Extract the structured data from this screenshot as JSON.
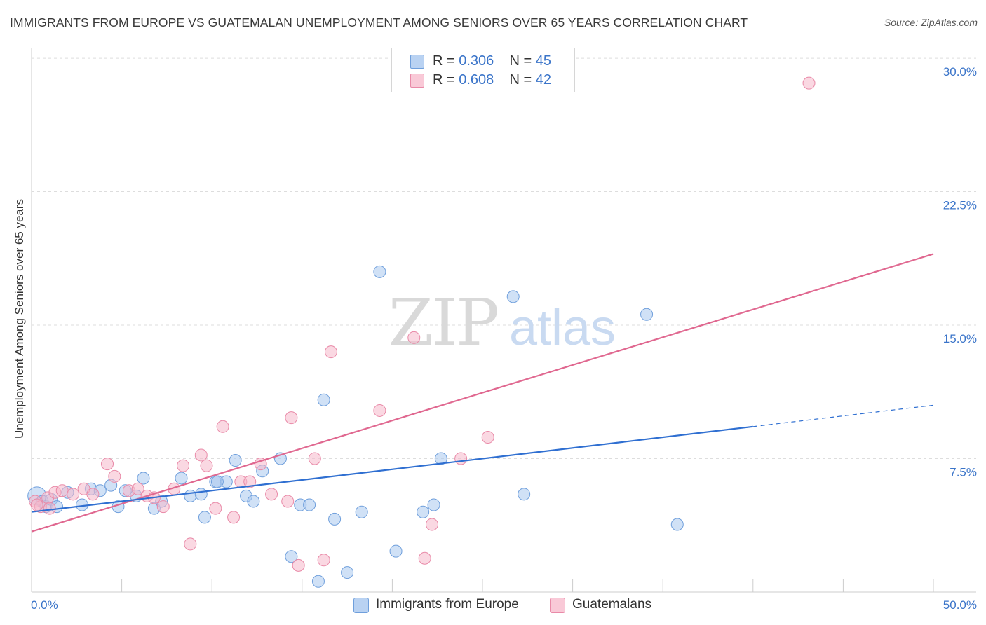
{
  "header": {
    "title": "IMMIGRANTS FROM EUROPE VS GUATEMALAN UNEMPLOYMENT AMONG SENIORS OVER 65 YEARS CORRELATION CHART",
    "source": "Source: ZipAtlas.com"
  },
  "watermark": {
    "zip": "ZIP",
    "atlas": "atlas"
  },
  "legend": {
    "rows": [
      {
        "r_label": "R = ",
        "r_value": "0.306",
        "n_label": "N = ",
        "n_value": "45"
      },
      {
        "r_label": "R = ",
        "r_value": "0.608",
        "n_label": "N = ",
        "n_value": "42"
      }
    ]
  },
  "bottom_legend": {
    "items": [
      {
        "label": "Immigrants from Europe"
      },
      {
        "label": "Guatemalans"
      }
    ]
  },
  "colors": {
    "blue_fill": "#a9c8ef",
    "blue_stroke": "#6f9fdc",
    "blue_line": "#2f6fd1",
    "pink_fill": "#f6b8cb",
    "pink_stroke": "#e98aa8",
    "pink_line": "#e06890",
    "axis_text": "#3a74c9",
    "grid": "#dddddd"
  },
  "chart_data": {
    "type": "scatter",
    "title": "IMMIGRANTS FROM EUROPE VS GUATEMALAN UNEMPLOYMENT AMONG SENIORS OVER 65 YEARS CORRELATION CHART",
    "xlabel": "",
    "ylabel": "Unemployment Among Seniors over 65 years",
    "xlim": [
      0,
      50
    ],
    "ylim": [
      0,
      30
    ],
    "x_tick_labels": [
      {
        "value": 0,
        "label": "0.0%"
      },
      {
        "value": 50,
        "label": "50.0%"
      }
    ],
    "y_tick_labels": [
      {
        "value": 7.5,
        "label": "7.5%"
      },
      {
        "value": 15,
        "label": "15.0%"
      },
      {
        "value": 22.5,
        "label": "22.5%"
      },
      {
        "value": 30,
        "label": "30.0%"
      }
    ],
    "series": [
      {
        "name": "Immigrants from Europe",
        "color": "blue",
        "R": 0.306,
        "N": 45,
        "points": [
          [
            0.3,
            5.4
          ],
          [
            0.6,
            5.1
          ],
          [
            0.8,
            4.8
          ],
          [
            1.1,
            5.2
          ],
          [
            1.4,
            4.8
          ],
          [
            2.0,
            5.6
          ],
          [
            2.8,
            4.9
          ],
          [
            3.3,
            5.8
          ],
          [
            3.8,
            5.7
          ],
          [
            4.4,
            6.0
          ],
          [
            4.8,
            4.8
          ],
          [
            5.2,
            5.7
          ],
          [
            5.8,
            5.4
          ],
          [
            6.2,
            6.4
          ],
          [
            6.8,
            4.7
          ],
          [
            7.2,
            5.1
          ],
          [
            8.3,
            6.4
          ],
          [
            8.8,
            5.4
          ],
          [
            9.4,
            5.5
          ],
          [
            9.6,
            4.2
          ],
          [
            10.2,
            6.2
          ],
          [
            10.8,
            6.2
          ],
          [
            11.3,
            7.4
          ],
          [
            11.9,
            5.4
          ],
          [
            12.3,
            5.1
          ],
          [
            12.8,
            6.8
          ],
          [
            13.8,
            7.5
          ],
          [
            14.4,
            2.0
          ],
          [
            14.9,
            4.9
          ],
          [
            15.4,
            4.9
          ],
          [
            15.9,
            0.6
          ],
          [
            16.2,
            10.8
          ],
          [
            16.8,
            4.1
          ],
          [
            17.5,
            1.1
          ],
          [
            18.3,
            4.5
          ],
          [
            19.3,
            18.0
          ],
          [
            20.2,
            2.3
          ],
          [
            21.7,
            4.5
          ],
          [
            22.3,
            4.9
          ],
          [
            22.7,
            7.5
          ],
          [
            26.7,
            16.6
          ],
          [
            27.3,
            5.5
          ],
          [
            34.1,
            15.6
          ],
          [
            35.8,
            3.8
          ],
          [
            10.3,
            6.2
          ]
        ],
        "trend": {
          "x0": 0,
          "y0": 4.5,
          "x1": 40,
          "y1": 9.3,
          "dashed_to_x": 50,
          "dashed_to_y": 10.5
        }
      },
      {
        "name": "Guatemalans",
        "color": "pink",
        "R": 0.608,
        "N": 42,
        "points": [
          [
            0.2,
            5.1
          ],
          [
            0.5,
            4.8
          ],
          [
            0.9,
            5.3
          ],
          [
            1.3,
            5.6
          ],
          [
            1.7,
            5.7
          ],
          [
            2.3,
            5.5
          ],
          [
            2.9,
            5.8
          ],
          [
            3.4,
            5.5
          ],
          [
            4.2,
            7.2
          ],
          [
            4.6,
            6.5
          ],
          [
            5.4,
            5.7
          ],
          [
            5.9,
            5.8
          ],
          [
            6.4,
            5.4
          ],
          [
            7.3,
            4.8
          ],
          [
            7.9,
            5.8
          ],
          [
            8.4,
            7.1
          ],
          [
            8.8,
            2.7
          ],
          [
            9.4,
            7.7
          ],
          [
            9.7,
            7.1
          ],
          [
            10.2,
            4.7
          ],
          [
            10.6,
            9.3
          ],
          [
            11.2,
            4.2
          ],
          [
            11.6,
            6.2
          ],
          [
            12.1,
            6.2
          ],
          [
            12.7,
            7.2
          ],
          [
            13.3,
            5.5
          ],
          [
            14.2,
            5.1
          ],
          [
            14.4,
            9.8
          ],
          [
            14.8,
            1.5
          ],
          [
            15.7,
            7.5
          ],
          [
            16.2,
            1.8
          ],
          [
            16.6,
            13.5
          ],
          [
            19.3,
            10.2
          ],
          [
            21.2,
            14.3
          ],
          [
            21.8,
            1.9
          ],
          [
            22.2,
            3.8
          ],
          [
            23.8,
            7.5
          ],
          [
            25.3,
            8.7
          ],
          [
            43.1,
            28.6
          ],
          [
            0.3,
            4.9
          ],
          [
            1.0,
            4.7
          ],
          [
            6.8,
            5.3
          ]
        ],
        "trend": {
          "x0": 0,
          "y0": 3.4,
          "x1": 50,
          "y1": 19.0
        }
      }
    ]
  }
}
